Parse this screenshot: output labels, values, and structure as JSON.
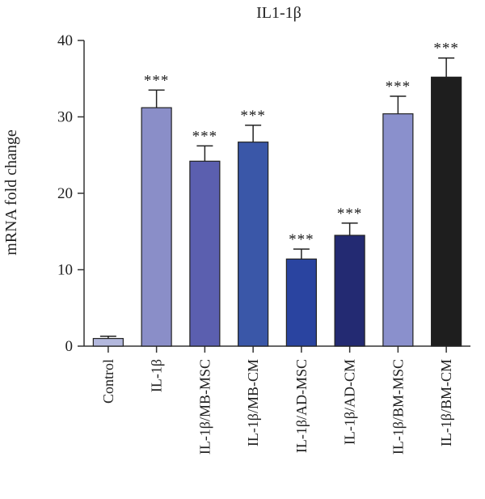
{
  "chart_data": {
    "type": "bar",
    "title": "IL1-1β",
    "ylabel": "mRNA fold change",
    "xlabel": "",
    "ylim": [
      0,
      40
    ],
    "yticks": [
      0,
      10,
      20,
      30,
      40
    ],
    "grid": false,
    "categories": [
      "Control",
      "IL-1β",
      "IL-1β/MB-MSC",
      "IL-1β/MB-CM",
      "IL-1β/AD-MSC",
      "IL-1β/AD-CM",
      "IL-1β/BM-MSC",
      "IL-1β/BM-CM"
    ],
    "values": [
      1.0,
      31.2,
      24.2,
      26.7,
      11.4,
      14.5,
      30.4,
      35.2
    ],
    "errors": [
      0.3,
      2.3,
      2.0,
      2.2,
      1.3,
      1.6,
      2.3,
      2.5
    ],
    "significance": [
      "",
      "***",
      "***",
      "***",
      "***",
      "***",
      "***",
      "***"
    ],
    "colors": [
      "#b3b8dd",
      "#8a8ec8",
      "#5b5faf",
      "#3a57a8",
      "#2a44a0",
      "#232a72",
      "#8a90cc",
      "#1e1e1e"
    ]
  }
}
